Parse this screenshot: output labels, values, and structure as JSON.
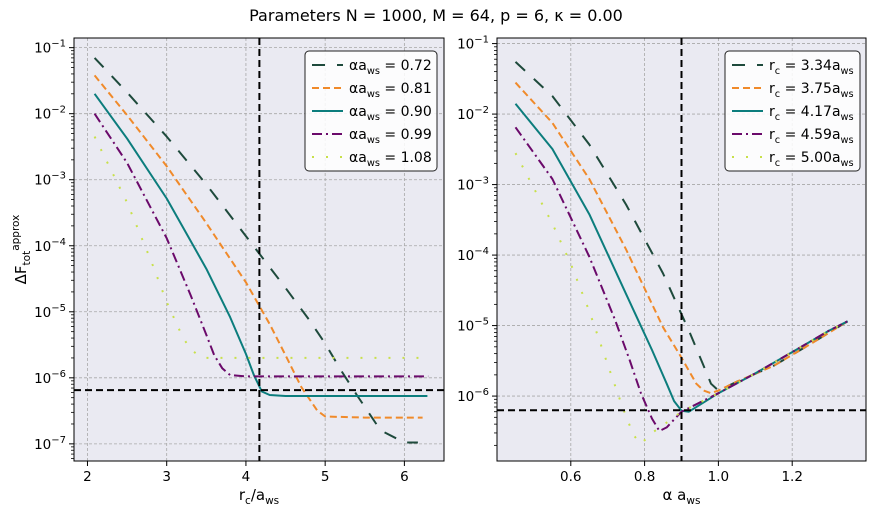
{
  "suptitle": "Parameters  N = 1000,    M = 64,    p = 6,    κ = 0.00",
  "chart_data": [
    {
      "type": "line",
      "xlabel": "r_c/a_ws",
      "ylabel": "ΔF_tot^approx",
      "yscale": "log",
      "xlim": [
        1.83,
        6.5
      ],
      "ylim": [
        5.5e-08,
        0.14
      ],
      "xticks": [
        2,
        3,
        4,
        5,
        6
      ],
      "yticks": [
        1e-07,
        1e-06,
        1e-05,
        0.0001,
        0.001,
        0.01,
        0.1
      ],
      "grid": true,
      "legend_position": "top-right",
      "hline": 6.5e-07,
      "vline": 4.17,
      "series": [
        {
          "name": "αa_ws = 0.72",
          "color": "#1e4a3c",
          "dash": "13,12",
          "x": [
            2.09,
            2.5,
            3.0,
            3.5,
            4.0,
            4.5,
            4.8,
            5.0,
            5.2,
            5.4,
            5.7,
            6.0,
            6.17
          ],
          "y": [
            0.07,
            0.021,
            0.0045,
            0.00085,
            0.00014,
            2.3e-05,
            7.5e-06,
            3.3e-06,
            1.3e-06,
            5.5e-07,
            1.6e-07,
            1.05e-07,
            1.05e-07
          ]
        },
        {
          "name": "αa_ws = 0.81",
          "color": "#f08a2a",
          "dash": "7,4",
          "x": [
            2.09,
            2.5,
            3.0,
            3.5,
            4.0,
            4.3,
            4.5,
            4.7,
            4.9,
            5.0,
            5.5,
            6.0,
            6.23
          ],
          "y": [
            0.038,
            0.0095,
            0.0016,
            0.00022,
            2.8e-05,
            6.5e-06,
            2.2e-06,
            7.2e-07,
            3.2e-07,
            2.6e-07,
            2.5e-07,
            2.5e-07,
            2.5e-07
          ]
        },
        {
          "name": "αa_ws = 0.90",
          "color": "#0c7d7d",
          "dash": "",
          "x": [
            2.09,
            2.5,
            3.0,
            3.5,
            3.8,
            4.0,
            4.1,
            4.2,
            4.3,
            4.5,
            5.0,
            5.5,
            6.0,
            6.29
          ],
          "y": [
            0.02,
            0.0042,
            0.00052,
            4.5e-05,
            8.3e-06,
            2.3e-06,
            1.1e-06,
            6.2e-07,
            5.5e-07,
            5.3e-07,
            5.3e-07,
            5.3e-07,
            5.3e-07,
            5.3e-07
          ]
        },
        {
          "name": "αa_ws = 0.99",
          "color": "#6b0a6b",
          "dash": "10,4,2,4",
          "x": [
            2.09,
            2.5,
            3.0,
            3.3,
            3.5,
            3.6,
            3.7,
            3.8,
            4.0,
            4.5,
            5.0,
            5.5,
            6.0,
            6.3
          ],
          "y": [
            0.01,
            0.0018,
            0.00013,
            1.8e-05,
            4.5e-06,
            2.2e-06,
            1.4e-06,
            1.1e-06,
            1.05e-06,
            1.05e-06,
            1.05e-06,
            1.05e-06,
            1.05e-06,
            1.05e-06
          ]
        },
        {
          "name": "αa_ws = 1.08",
          "color": "#c8e04a",
          "dash": "2,12",
          "x": [
            2.09,
            2.5,
            2.8,
            3.0,
            3.2,
            3.3,
            3.4,
            3.5,
            3.7,
            4.0,
            4.5,
            5.0,
            5.5,
            6.0,
            6.3
          ],
          "y": [
            0.0045,
            0.00045,
            6e-05,
            1.4e-05,
            4.2e-06,
            2.7e-06,
            2.2e-06,
            2e-06,
            2e-06,
            2e-06,
            2e-06,
            2e-06,
            2e-06,
            2e-06,
            2e-06
          ]
        }
      ]
    },
    {
      "type": "line",
      "xlabel": "α a_ws",
      "ylabel": "",
      "yscale": "log",
      "xlim": [
        0.4,
        1.4
      ],
      "ylim": [
        1.2e-07,
        0.12
      ],
      "xticks": [
        0.6,
        0.8,
        1.0,
        1.2
      ],
      "yticks": [
        1e-06,
        1e-05,
        0.0001,
        0.001,
        0.01,
        0.1
      ],
      "grid": true,
      "legend_position": "top-right",
      "hline": 6.3e-07,
      "vline": 0.9,
      "series": [
        {
          "name": "r_c = 3.34a_ws",
          "color": "#1e4a3c",
          "dash": "13,12",
          "x": [
            0.45,
            0.55,
            0.65,
            0.75,
            0.85,
            0.92,
            0.96,
            0.98,
            1.0,
            1.05,
            1.15,
            1.25,
            1.35
          ],
          "y": [
            0.055,
            0.018,
            0.0037,
            0.00052,
            5.5e-05,
            8.5e-06,
            2.7e-06,
            1.5e-06,
            1.2e-06,
            1.6e-06,
            2.7e-06,
            5.5e-06,
            1.15e-05
          ]
        },
        {
          "name": "r_c = 3.75a_ws",
          "color": "#f08a2a",
          "dash": "7,4",
          "x": [
            0.45,
            0.55,
            0.65,
            0.75,
            0.85,
            0.9,
            0.94,
            0.96,
            0.98,
            1.0,
            1.05,
            1.15,
            1.25,
            1.35
          ],
          "y": [
            0.028,
            0.0075,
            0.0012,
            0.00012,
            9.5e-06,
            3.5e-06,
            1.5e-06,
            1.2e-06,
            1.1e-06,
            1.2e-06,
            1.6e-06,
            2.7e-06,
            5.5e-06,
            1.15e-05
          ]
        },
        {
          "name": "r_c = 4.17a_ws",
          "color": "#0c7d7d",
          "dash": "",
          "x": [
            0.45,
            0.55,
            0.65,
            0.75,
            0.82,
            0.86,
            0.88,
            0.9,
            0.92,
            1.0,
            1.1,
            1.2,
            1.3,
            1.35
          ],
          "y": [
            0.014,
            0.0032,
            0.00038,
            2.8e-05,
            4.5e-06,
            1.5e-06,
            8.5e-07,
            6.2e-07,
            6e-07,
            1.1e-06,
            2.1e-06,
            4.2e-06,
            8.5e-06,
            1.15e-05
          ]
        },
        {
          "name": "r_c = 4.59a_ws",
          "color": "#6b0a6b",
          "dash": "10,4,2,4",
          "x": [
            0.45,
            0.55,
            0.65,
            0.72,
            0.76,
            0.79,
            0.82,
            0.84,
            0.86,
            0.9,
            1.0,
            1.1,
            1.2,
            1.3,
            1.35
          ],
          "y": [
            0.0065,
            0.0012,
            9.5e-05,
            1.2e-05,
            3.2e-06,
            1.1e-06,
            4.8e-07,
            3.2e-07,
            3.6e-07,
            6e-07,
            1.1e-06,
            2.1e-06,
            4.2e-06,
            8.5e-06,
            1.15e-05
          ]
        },
        {
          "name": "r_c = 5.00a_ws",
          "color": "#c8e04a",
          "dash": "2,12",
          "x": [
            0.45,
            0.55,
            0.6,
            0.65,
            0.7,
            0.74,
            0.77,
            0.79,
            0.82,
            0.86,
            0.9,
            1.0,
            1.1,
            1.2,
            1.3,
            1.35
          ],
          "y": [
            0.0028,
            0.00028,
            7.5e-05,
            1.6e-05,
            2.8e-06,
            7e-07,
            2.8e-07,
            2.1e-07,
            3e-07,
            4.2e-07,
            6e-07,
            1.1e-06,
            2.1e-06,
            4.2e-06,
            8.5e-06,
            1.15e-05
          ]
        }
      ]
    }
  ]
}
